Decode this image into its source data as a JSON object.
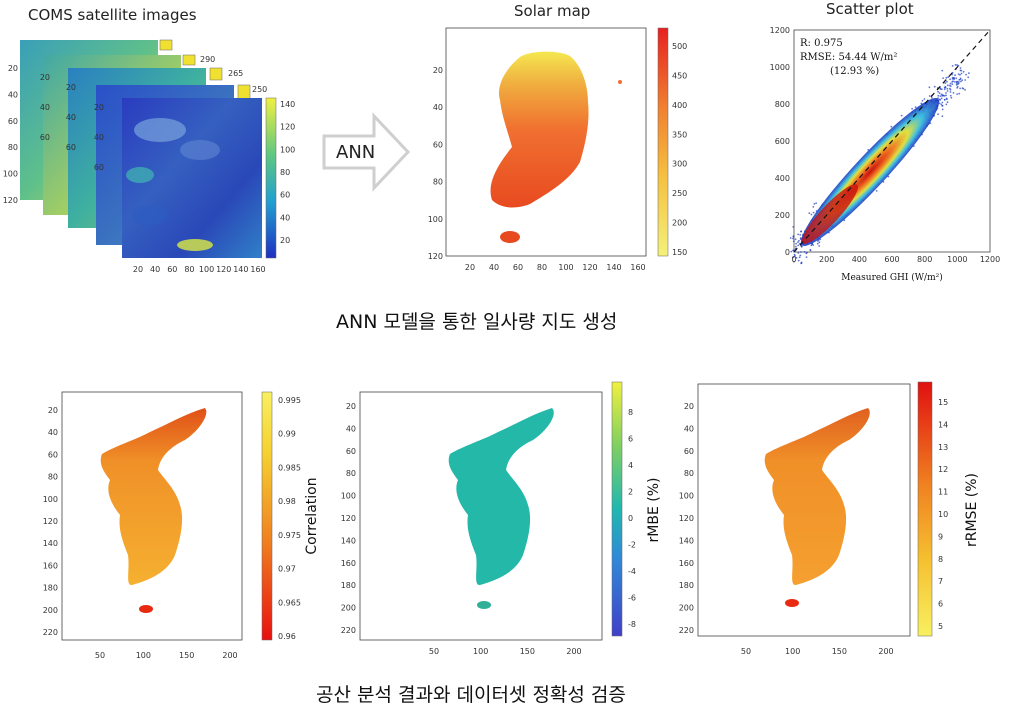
{
  "top": {
    "coms_title": "COMS satellite images",
    "arrow_label": "ANN",
    "solar_title": "Solar map",
    "scatter_title": "Scatter plot",
    "caption": "ANN 모델을 통한 일사량 지도 생성"
  },
  "coms": {
    "colorbar_ticks": [
      "140",
      "120",
      "100",
      "80",
      "60",
      "40",
      "20"
    ],
    "x_ticks": [
      "20",
      "40",
      "60",
      "80",
      "100",
      "120",
      "140",
      "160"
    ],
    "y_ticks": [
      "20",
      "40",
      "60",
      "80",
      "100",
      "120"
    ],
    "layer_ticks": [
      "20",
      "40",
      "60",
      "80",
      "100",
      "120"
    ],
    "back_labels": [
      "290",
      "265",
      "250"
    ],
    "colors": {
      "low": "#3040c8",
      "mid": "#3aa0b0",
      "high": "#e8e050"
    }
  },
  "solar_map": {
    "x_ticks": [
      "20",
      "40",
      "60",
      "80",
      "100",
      "120",
      "140",
      "160"
    ],
    "y_ticks": [
      "20",
      "40",
      "60",
      "80",
      "100",
      "120"
    ],
    "colorbar_ticks": [
      "500",
      "450",
      "400",
      "350",
      "300",
      "250",
      "200",
      "150"
    ]
  },
  "scatter": {
    "stats": {
      "r": "R: 0.975",
      "rmse": "RMSE: 54.44 W/m²",
      "pct": "(12.93 %)"
    },
    "xlabel": "Measured GHI (W/m²)",
    "x_ticks": [
      "0",
      "200",
      "400",
      "600",
      "800",
      "1000",
      "1200"
    ],
    "y_ticks": [
      "0",
      "200",
      "400",
      "600",
      "800",
      "1000",
      "1200"
    ]
  },
  "bottom": {
    "caption": "공산 분석 결과와 데이터셋 정확성 검증",
    "x_ticks": [
      "50",
      "100",
      "150",
      "200"
    ],
    "y_ticks": [
      "20",
      "40",
      "60",
      "80",
      "100",
      "120",
      "140",
      "160",
      "180",
      "200",
      "220"
    ],
    "corr": {
      "label": "Correlation",
      "ticks": [
        "0.995",
        "0.99",
        "0.985",
        "0.98",
        "0.975",
        "0.97",
        "0.965",
        "0.96"
      ]
    },
    "rmbe": {
      "label": "rMBE (%)",
      "ticks": [
        "8",
        "6",
        "4",
        "2",
        "0",
        "-2",
        "-4",
        "-6",
        "-8"
      ]
    },
    "rrmse": {
      "label": "rRMSE (%)",
      "ticks": [
        "15",
        "14",
        "13",
        "12",
        "11",
        "10",
        "9",
        "8",
        "7",
        "6",
        "5"
      ]
    }
  }
}
